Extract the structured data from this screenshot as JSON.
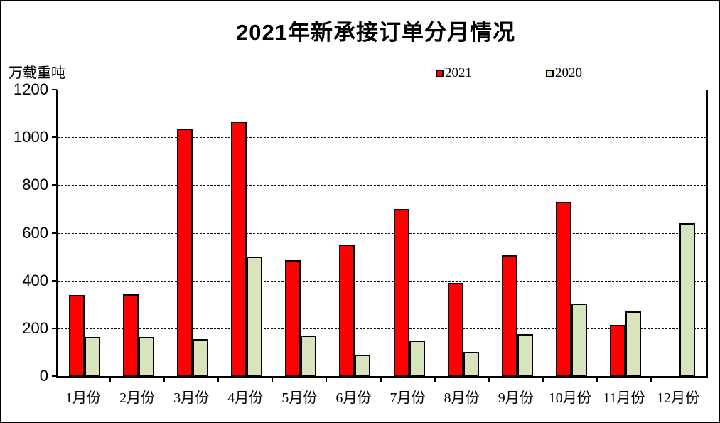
{
  "title": "2021年新承接订单分月情况",
  "y_axis_title": "万载重吨",
  "chart_data": {
    "type": "bar",
    "title": "2021年新承接订单分月情况",
    "ylabel": "万载重吨",
    "xlabel": "",
    "ylim": [
      0,
      1200
    ],
    "ytick_step": 200,
    "grid": "dashed-horizontal",
    "legend_position": "top",
    "categories": [
      "1月份",
      "2月份",
      "3月份",
      "4月份",
      "5月份",
      "6月份",
      "7月份",
      "8月份",
      "9月份",
      "10月份",
      "11月份",
      "12月份"
    ],
    "series": [
      {
        "name": "2021",
        "color": "#FF0000",
        "values": [
          340,
          342,
          1035,
          1065,
          485,
          550,
          700,
          390,
          505,
          730,
          215,
          0
        ]
      },
      {
        "name": "2020",
        "color": "#D8E4BC",
        "values": [
          165,
          165,
          155,
          500,
          170,
          90,
          150,
          100,
          175,
          305,
          270,
          640
        ]
      }
    ]
  }
}
